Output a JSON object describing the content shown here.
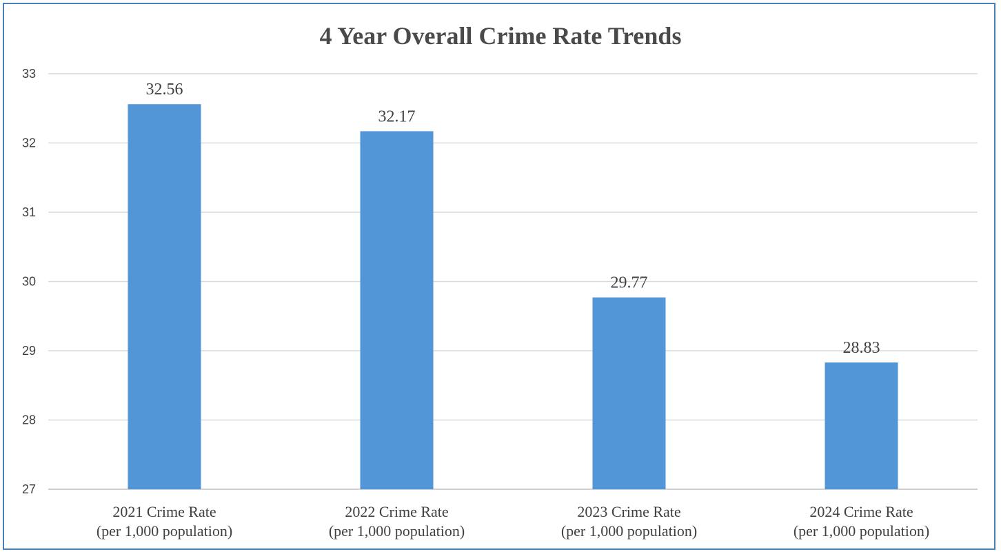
{
  "chart_data": {
    "type": "bar",
    "title": "4 Year Overall Crime Rate Trends",
    "categories": [
      [
        "2021 Crime Rate",
        "(per 1,000 population)"
      ],
      [
        "2022 Crime Rate",
        "(per 1,000 population)"
      ],
      [
        "2023 Crime Rate",
        "(per 1,000 population)"
      ],
      [
        "2024 Crime Rate",
        "(per 1,000 population)"
      ]
    ],
    "values": [
      32.56,
      32.17,
      29.77,
      28.83
    ],
    "data_labels": [
      "32.56",
      "32.17",
      "29.77",
      "28.83"
    ],
    "ylim": [
      27,
      33
    ],
    "yticks": [
      "27",
      "28",
      "29",
      "30",
      "31",
      "32",
      "33"
    ],
    "xlabel": "",
    "ylabel": "",
    "grid": true,
    "legend": "none",
    "colors": {
      "bar": "#5296d8",
      "border": "#4a7fb3"
    }
  }
}
